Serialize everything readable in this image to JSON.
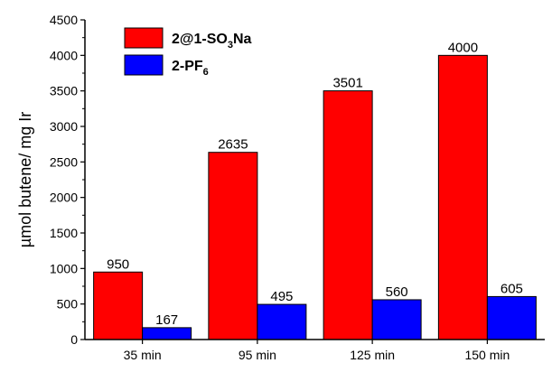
{
  "chart_data": {
    "type": "bar",
    "title": "",
    "xlabel": "",
    "ylabel": "µmol butene/ mg Ir",
    "ylim": [
      0,
      4500
    ],
    "yticks": [
      0,
      500,
      1000,
      1500,
      2000,
      2500,
      3000,
      3500,
      4000,
      4500
    ],
    "categories": [
      "35 min",
      "95 min",
      "125 min",
      "150 min"
    ],
    "series": [
      {
        "name": "2@1-SO3Na",
        "color": "#ff0000",
        "values": [
          950,
          2635,
          3501,
          4000
        ]
      },
      {
        "name": "2-PF6",
        "color": "#0000ff",
        "values": [
          167,
          495,
          560,
          605
        ]
      }
    ],
    "data_labels": [
      [
        "950",
        "2635",
        "3501",
        "4000"
      ],
      [
        "167",
        "495",
        "560",
        "605"
      ]
    ],
    "legend": {
      "placement": "top-left",
      "entries": [
        {
          "base": "2@1-SO",
          "sub": "3",
          "tail": "Na"
        },
        {
          "base": "2-PF",
          "sub": "6",
          "tail": ""
        }
      ]
    },
    "grid": false
  }
}
